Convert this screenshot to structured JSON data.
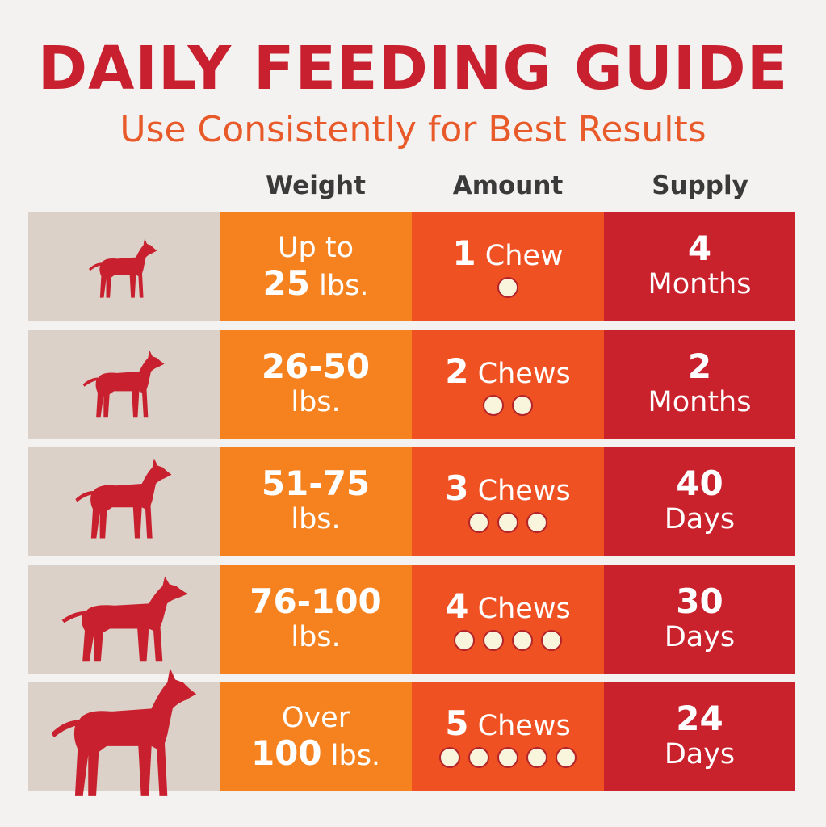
{
  "title": "DAILY FEEDING GUIDE",
  "subtitle": "Use Consistently for Best Results",
  "headers": {
    "weight": "Weight",
    "amount": "Amount",
    "supply": "Supply"
  },
  "colors": {
    "title": "#c8202e",
    "subtitle": "#e85a2a",
    "icon_column": "#dcd1c8",
    "weight_column": "#f5821f",
    "amount_column": "#ef5123",
    "supply_column": "#c9222c",
    "dog": "#c8202e"
  },
  "rows": [
    {
      "icon": "chihuahua-icon",
      "weight_top": "Up to",
      "weight_num": "25",
      "weight_unit": "lbs.",
      "chews_num": "1",
      "chews_label": "Chew",
      "chews": 1,
      "supply_num": "4",
      "supply_unit": "Months"
    },
    {
      "icon": "bulldog-icon",
      "weight_num": "26-50",
      "weight_unit": "lbs.",
      "chews_num": "2",
      "chews_label": "Chews",
      "chews": 2,
      "supply_num": "2",
      "supply_unit": "Months"
    },
    {
      "icon": "terrier-icon",
      "weight_num": "51-75",
      "weight_unit": "lbs.",
      "chews_num": "3",
      "chews_label": "Chews",
      "chews": 3,
      "supply_num": "40",
      "supply_unit": "Days"
    },
    {
      "icon": "shepherd-icon",
      "weight_num": "76-100",
      "weight_unit": "lbs.",
      "chews_num": "4",
      "chews_label": "Chews",
      "chews": 4,
      "supply_num": "30",
      "supply_unit": "Days"
    },
    {
      "icon": "great-dane-icon",
      "weight_top": "Over",
      "weight_num": "100",
      "weight_unit": "lbs.",
      "chews_num": "5",
      "chews_label": "Chews",
      "chews": 5,
      "supply_num": "24",
      "supply_unit": "Days"
    }
  ]
}
